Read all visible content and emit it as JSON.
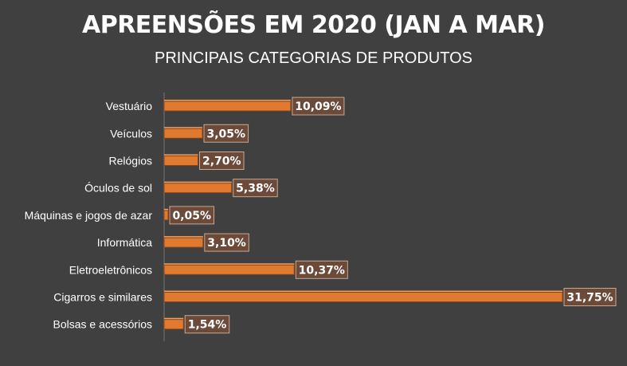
{
  "chart_data": {
    "type": "bar",
    "orientation": "horizontal",
    "title": "APREENSÕES EM 2020 (JAN A MAR)",
    "subtitle": "PRINCIPAIS CATEGORIAS DE PRODUTOS",
    "categories": [
      "Vestuário",
      "Veículos",
      "Relógios",
      "Óculos de sol",
      "Máquinas e jogos de azar",
      "Informática",
      "Eletroeletrônicos",
      "Cigarros e similares",
      "Bolsas e acessórios"
    ],
    "values": [
      10.09,
      3.05,
      2.7,
      5.38,
      0.05,
      3.1,
      10.37,
      31.75,
      1.54
    ],
    "data_labels": [
      "10,09%",
      "3,05%",
      "2,70%",
      "5,38%",
      "0,05%",
      "3,10%",
      "10,37%",
      "31,75%",
      "1,54%"
    ],
    "unit": "%",
    "grid": false,
    "legend": "none",
    "colors": {
      "background": "#404040",
      "bar": "#e07a30",
      "label_box": "#6b4a3a",
      "label_border": "#c8a890",
      "text": "#ffffff"
    }
  }
}
